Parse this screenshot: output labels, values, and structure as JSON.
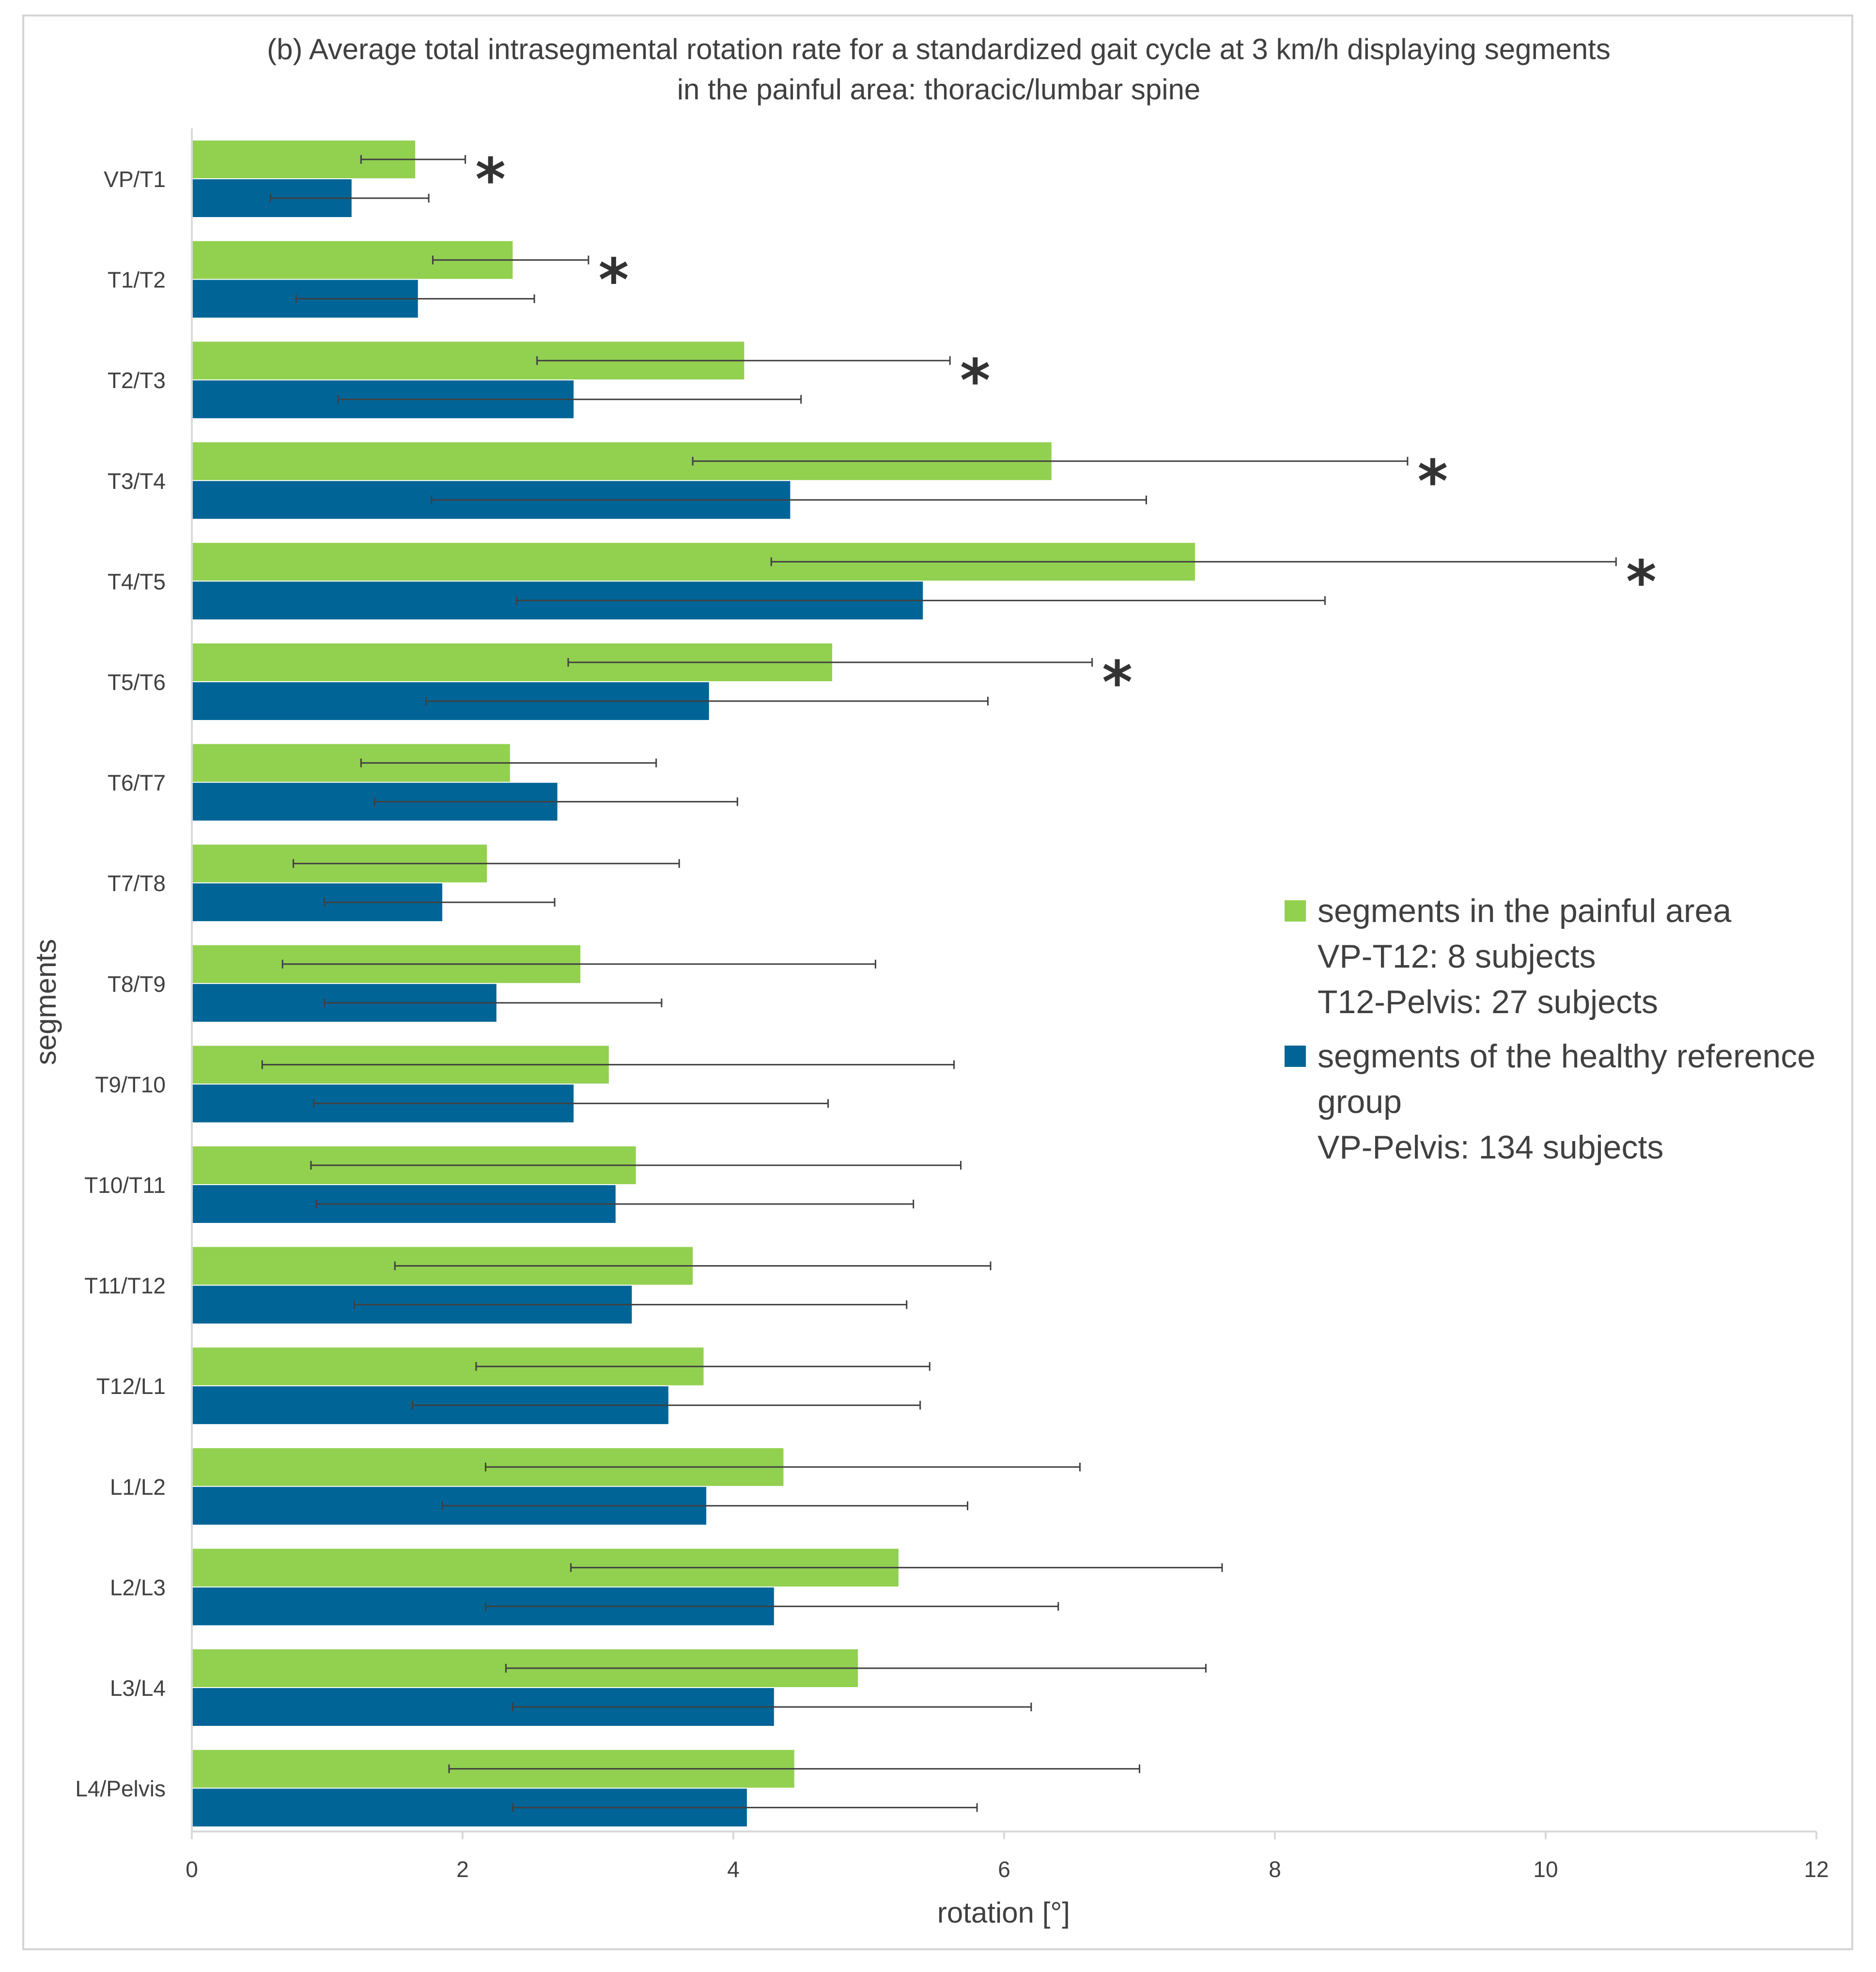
{
  "chart_data": {
    "type": "bar",
    "orientation": "horizontal",
    "title_lines": [
      "(b) Average total intrasegmental rotation rate for a standardized gait cycle at 3 km/h displaying segments",
      "in the painful area: thoracic/lumbar spine"
    ],
    "xlabel": "rotation [°]",
    "ylabel": "segments",
    "xlim": [
      0,
      12
    ],
    "xticks": [
      0,
      2,
      4,
      6,
      8,
      10,
      12
    ],
    "grid": false,
    "legend_position": "right",
    "categories": [
      "VP/T1",
      "T1/T2",
      "T2/T3",
      "T3/T4",
      "T4/T5",
      "T5/T6",
      "T6/T7",
      "T7/T8",
      "T8/T9",
      "T9/T10",
      "T10/T11",
      "T11/T12",
      "T12/L1",
      "L1/L2",
      "L2/L3",
      "L3/L4",
      "L4/Pelvis"
    ],
    "series": [
      {
        "name": "segments in the painful area",
        "legend_lines": [
          "segments in the painful area",
          "VP-T12: 8 subjects",
          "T12-Pelvis: 27 subjects"
        ],
        "color": "#92d050",
        "values": [
          1.65,
          2.37,
          4.08,
          6.35,
          7.41,
          4.73,
          2.35,
          2.18,
          2.87,
          3.08,
          3.28,
          3.7,
          3.78,
          4.37,
          5.22,
          4.92,
          4.45
        ],
        "err_low": [
          1.25,
          1.78,
          2.55,
          3.7,
          4.28,
          2.78,
          1.25,
          0.75,
          0.67,
          0.52,
          0.88,
          1.5,
          2.1,
          2.17,
          2.8,
          2.32,
          1.9
        ],
        "err_high": [
          2.02,
          2.93,
          5.6,
          8.98,
          10.52,
          6.65,
          3.43,
          3.6,
          5.05,
          5.63,
          5.68,
          5.9,
          5.45,
          6.56,
          7.61,
          7.49,
          7.0
        ]
      },
      {
        "name": "segments of the healthy reference group",
        "legend_lines": [
          "segments of the healthy reference",
          "group",
          "VP-Pelvis: 134 subjects"
        ],
        "color": "#006496",
        "values": [
          1.18,
          1.67,
          2.82,
          4.42,
          5.4,
          3.82,
          2.7,
          1.85,
          2.25,
          2.82,
          3.13,
          3.25,
          3.52,
          3.8,
          4.3,
          4.3,
          4.1
        ],
        "err_low": [
          0.58,
          0.77,
          1.08,
          1.77,
          2.4,
          1.73,
          1.35,
          0.98,
          0.98,
          0.9,
          0.92,
          1.2,
          1.63,
          1.85,
          2.17,
          2.37,
          2.37
        ],
        "err_high": [
          1.75,
          2.53,
          4.5,
          7.05,
          8.37,
          5.88,
          4.03,
          2.68,
          3.47,
          4.7,
          5.33,
          5.28,
          5.38,
          5.73,
          6.4,
          6.2,
          5.8
        ]
      }
    ],
    "significance_marker": "*",
    "significant_categories": [
      0,
      1,
      2,
      3,
      4,
      5
    ]
  },
  "colors": {
    "axis": "#d9d9d9",
    "text": "#404040",
    "error_bar": "#404040"
  }
}
